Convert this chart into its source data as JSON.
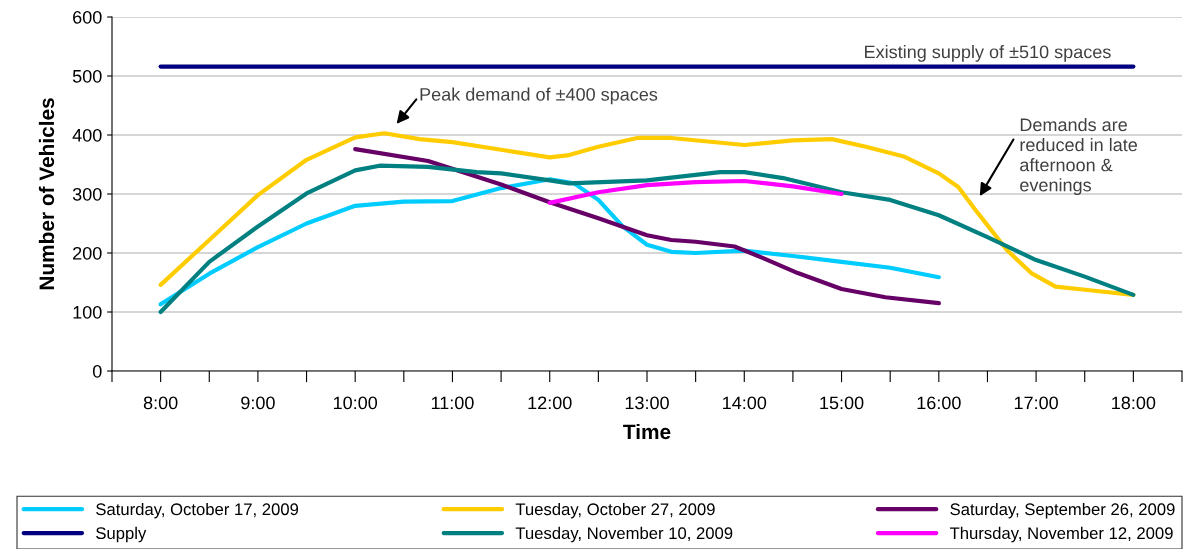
{
  "chart_data": {
    "type": "line",
    "xlabel": "Time",
    "ylabel": "Number of Vehicles",
    "xlim": [
      7.5,
      18.5
    ],
    "ylim": [
      0,
      600
    ],
    "yticks": [
      0,
      100,
      200,
      300,
      400,
      500,
      600
    ],
    "xticks": [
      {
        "value": 7.5,
        "label": null
      },
      {
        "value": 8,
        "label": "8:00"
      },
      {
        "value": 8.5,
        "label": null
      },
      {
        "value": 9,
        "label": "9:00"
      },
      {
        "value": 9.5,
        "label": null
      },
      {
        "value": 10,
        "label": "10:00"
      },
      {
        "value": 10.5,
        "label": null
      },
      {
        "value": 11,
        "label": "11:00"
      },
      {
        "value": 11.5,
        "label": null
      },
      {
        "value": 12,
        "label": "12:00"
      },
      {
        "value": 12.5,
        "label": null
      },
      {
        "value": 13,
        "label": "13:00"
      },
      {
        "value": 13.5,
        "label": null
      },
      {
        "value": 14,
        "label": "14:00"
      },
      {
        "value": 14.5,
        "label": null
      },
      {
        "value": 15,
        "label": "15:00"
      },
      {
        "value": 15.5,
        "label": null
      },
      {
        "value": 16,
        "label": "16:00"
      },
      {
        "value": 16.5,
        "label": null
      },
      {
        "value": 17,
        "label": "17:00"
      },
      {
        "value": 17.5,
        "label": null
      },
      {
        "value": 18,
        "label": "18:00"
      },
      {
        "value": 18.5,
        "label": null
      }
    ],
    "grid": "y",
    "legend": "bottom",
    "marker": "none",
    "line_style": "solid",
    "series": [
      {
        "name": "Saturday, October 17, 2009",
        "color": "#00ccff",
        "x": [
          8,
          8.5,
          9,
          9.5,
          10,
          10.5,
          11,
          11.5,
          12,
          12.25,
          12.5,
          12.75,
          13,
          13.25,
          13.5,
          14,
          14.5,
          15,
          15.5,
          16
        ],
        "values": [
          113,
          165,
          210,
          250,
          280,
          287,
          288,
          310,
          325,
          318,
          290,
          245,
          214,
          202,
          200,
          204,
          195,
          185,
          175,
          159
        ]
      },
      {
        "name": "Tuesday, October 27, 2009",
        "color": "#ffcc00",
        "x": [
          8,
          8.5,
          9,
          9.5,
          10,
          10.3,
          10.66,
          11,
          11.5,
          12,
          12.2,
          12.5,
          12.9,
          13.25,
          14,
          14.5,
          14.9,
          15.25,
          15.65,
          16,
          16.2,
          16.4,
          16.7,
          16.95,
          17.2,
          17.6,
          18
        ],
        "values": [
          146,
          222,
          298,
          358,
          396,
          403,
          393,
          388,
          375,
          362,
          366,
          380,
          395,
          395,
          383,
          391,
          393,
          380,
          363,
          335,
          312,
          268,
          205,
          166,
          143,
          136,
          129
        ]
      },
      {
        "name": "Saturday, September 26, 2009",
        "color": "#660066",
        "x": [
          10,
          10.75,
          11.5,
          12,
          12.5,
          13,
          13.25,
          13.5,
          13.9,
          14.2,
          14.55,
          15,
          15.45,
          16
        ],
        "values": [
          376,
          356,
          316,
          286,
          259,
          230,
          222,
          219,
          211,
          191,
          166,
          139,
          125,
          115
        ]
      },
      {
        "name": "Supply",
        "color": "#000080",
        "x": [
          8,
          18
        ],
        "values": [
          516,
          516
        ]
      },
      {
        "name": "Tuesday, November 10, 2009",
        "color": "#008080",
        "x": [
          8,
          8.5,
          9,
          9.5,
          10,
          10.25,
          10.75,
          11.25,
          11.5,
          12,
          12.2,
          13,
          13.75,
          14,
          14.4,
          15,
          15.5,
          16,
          16.5,
          17,
          17.5,
          18
        ],
        "values": [
          100,
          185,
          245,
          301,
          340,
          348,
          346,
          337,
          335,
          323,
          318,
          323,
          337,
          337,
          327,
          303,
          290,
          264,
          227,
          188,
          160,
          129
        ]
      },
      {
        "name": "Thursday, November 12, 2009",
        "color": "#ff00ff",
        "x": [
          12,
          12.5,
          13,
          13.5,
          14,
          14.5,
          15
        ],
        "values": [
          285,
          303,
          315,
          320,
          322,
          313,
          300
        ]
      }
    ],
    "annotations": [
      {
        "text": "Existing supply of ±510 spaces",
        "x": 16.5,
        "y": 516
      },
      "Peak demand of ±400 spaces",
      "Demands are\nreduced in late\nafternoon &\nevenings"
    ]
  }
}
